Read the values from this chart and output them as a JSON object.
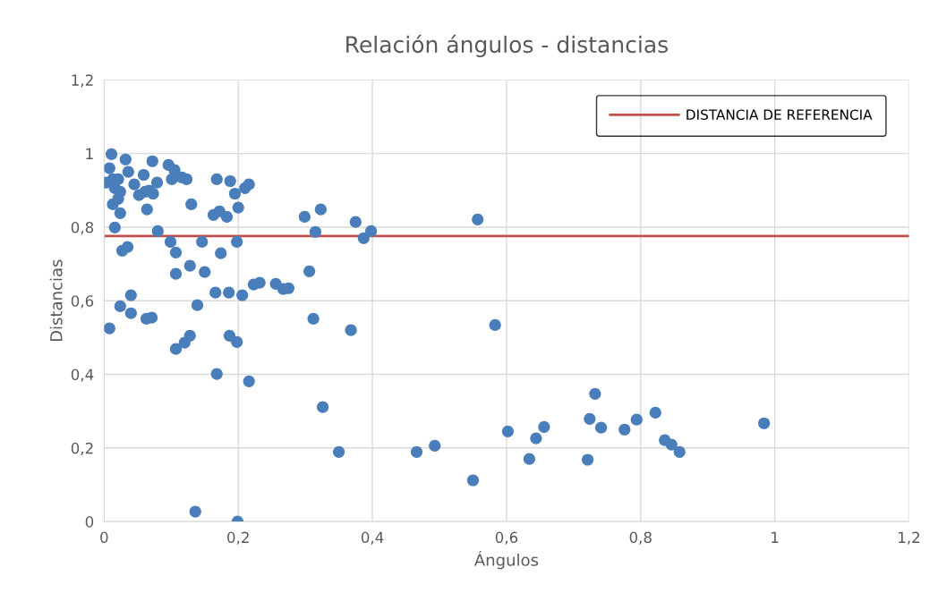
{
  "chart_data": {
    "type": "scatter",
    "title": "Relación ángulos - distancias",
    "xlabel": "Ángulos",
    "ylabel": "Distancias",
    "x": [
      0.003,
      0.008,
      0.011,
      0.013,
      0.016,
      0.021,
      0.024,
      0.032,
      0.013,
      0.021,
      0.024,
      0.016,
      0.027,
      0.035,
      0.036,
      0.045,
      0.052,
      0.059,
      0.061,
      0.072,
      0.073,
      0.079,
      0.08,
      0.096,
      0.101,
      0.105,
      0.116,
      0.123,
      0.13,
      0.064,
      0.067,
      0.099,
      0.107,
      0.107,
      0.128,
      0.15,
      0.146,
      0.168,
      0.188,
      0.163,
      0.172,
      0.183,
      0.198,
      0.2,
      0.195,
      0.21,
      0.216,
      0.174,
      0.166,
      0.186,
      0.206,
      0.223,
      0.232,
      0.256,
      0.267,
      0.275,
      0.299,
      0.323,
      0.315,
      0.306,
      0.312,
      0.326,
      0.35,
      0.368,
      0.375,
      0.387,
      0.398,
      0.557,
      0.583,
      0.008,
      0.024,
      0.04,
      0.04,
      0.063,
      0.071,
      0.107,
      0.12,
      0.128,
      0.139,
      0.168,
      0.187,
      0.198,
      0.216,
      0.136,
      0.199,
      0.466,
      0.493,
      0.55,
      0.602,
      0.634,
      0.644,
      0.656,
      0.724,
      0.732,
      0.741,
      0.776,
      0.794,
      0.822,
      0.836,
      0.846,
      0.858,
      0.984,
      0.721
    ],
    "series": [
      {
        "color": "#4a7ebb",
        "values": [
          0.921,
          0.96,
          0.998,
          0.93,
          0.906,
          0.93,
          0.896,
          0.984,
          0.862,
          0.877,
          0.838,
          0.799,
          0.736,
          0.746,
          0.95,
          0.916,
          0.887,
          0.942,
          0.896,
          0.979,
          0.891,
          0.921,
          0.789,
          0.969,
          0.93,
          0.955,
          0.935,
          0.93,
          0.862,
          0.848,
          0.899,
          0.76,
          0.731,
          0.673,
          0.695,
          0.678,
          0.76,
          0.93,
          0.925,
          0.833,
          0.843,
          0.828,
          0.76,
          0.853,
          0.891,
          0.906,
          0.916,
          0.729,
          0.622,
          0.622,
          0.615,
          0.644,
          0.649,
          0.646,
          0.632,
          0.634,
          0.828,
          0.848,
          0.787,
          0.68,
          0.551,
          0.311,
          0.189,
          0.52,
          0.814,
          0.77,
          0.789,
          0.821,
          0.534,
          0.525,
          0.585,
          0.615,
          0.566,
          0.551,
          0.554,
          0.469,
          0.486,
          0.505,
          0.588,
          0.401,
          0.505,
          0.488,
          0.381,
          0.027,
          0.0,
          0.189,
          0.206,
          0.112,
          0.245,
          0.17,
          0.226,
          0.257,
          0.279,
          0.347,
          0.255,
          0.25,
          0.277,
          0.296,
          0.221,
          0.209,
          0.189,
          0.267,
          0.168
        ]
      }
    ],
    "ref_lines": [
      {
        "axis": "y",
        "value": 0.776,
        "label": "DISTANCIA DE REFERENCIA",
        "color": "#c0504d"
      }
    ],
    "xlim": [
      0,
      1.2
    ],
    "ylim": [
      0,
      1.2
    ],
    "xticks": [
      0,
      {
        "value": 0.2,
        "label": "0,2"
      },
      {
        "value": 0.4,
        "label": "0,4"
      },
      {
        "value": 0.6,
        "label": "0,6"
      },
      {
        "value": 0.8,
        "label": "0,8"
      },
      1,
      {
        "value": 1.2,
        "label": "1,2"
      }
    ],
    "yticks": [
      0,
      {
        "value": 0.2,
        "label": "0,2"
      },
      {
        "value": 0.4,
        "label": "0,4"
      },
      {
        "value": 0.6,
        "label": "0,6"
      },
      {
        "value": 0.8,
        "label": "0,8"
      },
      1,
      {
        "value": 1.2,
        "label": "1,2"
      }
    ],
    "grid": true,
    "legend": "top right",
    "marker": "circle"
  }
}
